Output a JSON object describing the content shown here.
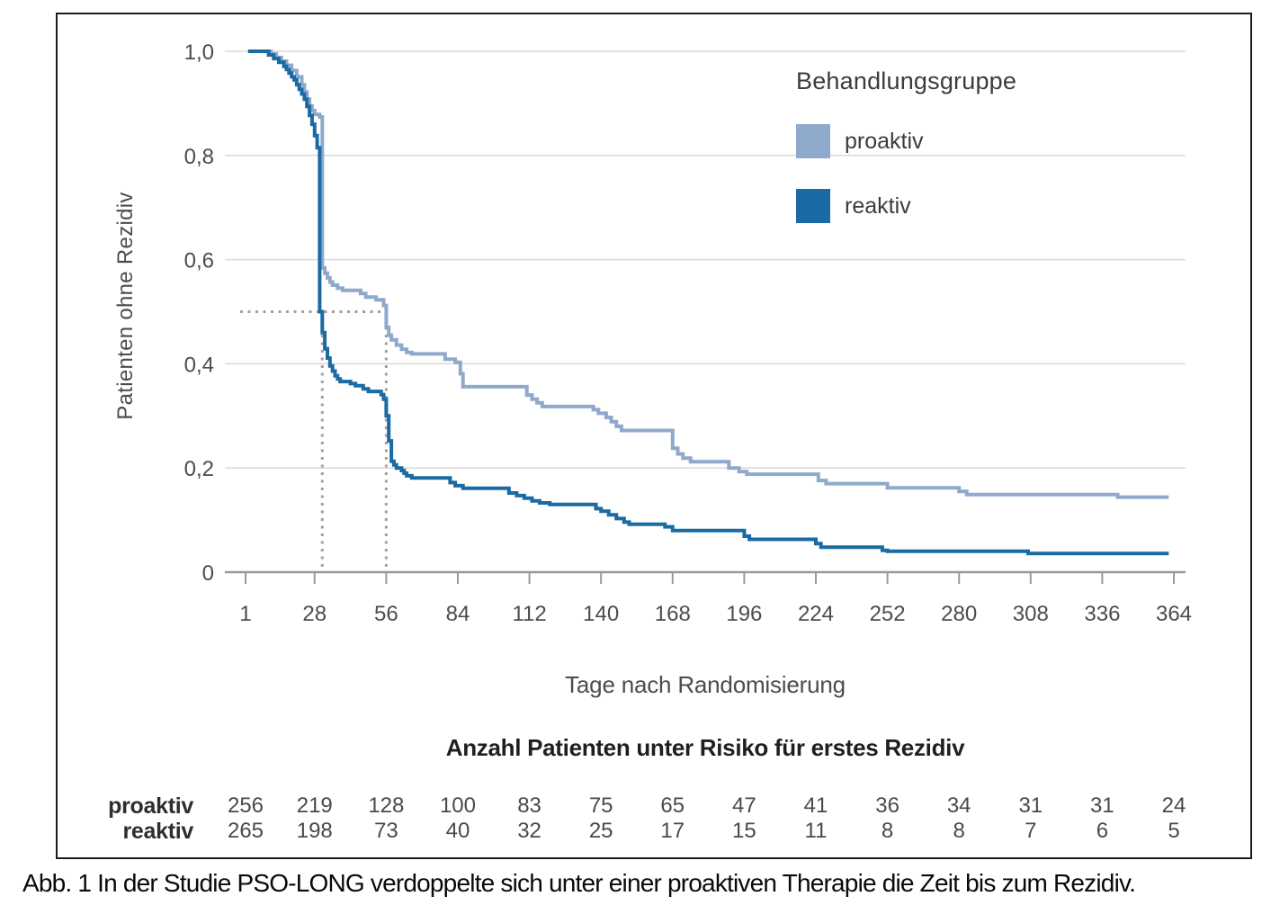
{
  "caption": "Abb. 1 In der Studie PSO-LONG verdoppelte sich unter einer proaktiven Therapie die Zeit bis zum Rezidiv.",
  "colors": {
    "proaktiv": "#8FA9CD",
    "reaktiv": "#1A6AA3",
    "gridline": "#dadada",
    "axis": "#9a9a9a",
    "dashed_guide": "#a0a0a0",
    "tick_text": "#4c4c4c"
  },
  "chart_data": {
    "type": "line",
    "variant": "kaplan-meier-step",
    "title": "",
    "xlabel": "Tage nach Randomisierung",
    "ylabel": "Patienten ohne Rezidiv",
    "xlim": [
      1,
      364
    ],
    "ylim": [
      0,
      1
    ],
    "grid": true,
    "legend_title": "Behandlungsgruppe",
    "legend_position": "top-right",
    "x_ticks": [
      1,
      28,
      56,
      84,
      112,
      140,
      168,
      196,
      224,
      252,
      280,
      308,
      336,
      364
    ],
    "y_ticks": {
      "values": [
        1.0,
        0.8,
        0.6,
        0.4,
        0.2,
        0
      ],
      "labels": [
        "1,0",
        "0,8",
        "0,6",
        "0,4",
        "0,2",
        "0"
      ]
    },
    "median_guides": {
      "survival_level": 0.5,
      "days": [
        31,
        56
      ]
    },
    "series": [
      {
        "name": "proaktiv",
        "color": "#8FA9CD",
        "points": [
          [
            2,
            1.0
          ],
          [
            9,
            1.0
          ],
          [
            11,
            0.995
          ],
          [
            13,
            0.988
          ],
          [
            15,
            0.981
          ],
          [
            17,
            0.973
          ],
          [
            19,
            0.963
          ],
          [
            21,
            0.951
          ],
          [
            23,
            0.936
          ],
          [
            24,
            0.922
          ],
          [
            25,
            0.908
          ],
          [
            26,
            0.895
          ],
          [
            27,
            0.886
          ],
          [
            28,
            0.879
          ],
          [
            30,
            0.874
          ],
          [
            31,
            0.584
          ],
          [
            32,
            0.574
          ],
          [
            33,
            0.565
          ],
          [
            34,
            0.557
          ],
          [
            35,
            0.551
          ],
          [
            37,
            0.545
          ],
          [
            39,
            0.541
          ],
          [
            46,
            0.535
          ],
          [
            48,
            0.528
          ],
          [
            52,
            0.523
          ],
          [
            55,
            0.512
          ],
          [
            56,
            0.47
          ],
          [
            57,
            0.455
          ],
          [
            58,
            0.446
          ],
          [
            60,
            0.436
          ],
          [
            62,
            0.428
          ],
          [
            64,
            0.422
          ],
          [
            66,
            0.419
          ],
          [
            79,
            0.409
          ],
          [
            83,
            0.403
          ],
          [
            85,
            0.381
          ],
          [
            86,
            0.356
          ],
          [
            111,
            0.34
          ],
          [
            113,
            0.332
          ],
          [
            115,
            0.325
          ],
          [
            117,
            0.318
          ],
          [
            137,
            0.312
          ],
          [
            139,
            0.305
          ],
          [
            142,
            0.297
          ],
          [
            144,
            0.289
          ],
          [
            146,
            0.28
          ],
          [
            148,
            0.272
          ],
          [
            168,
            0.238
          ],
          [
            170,
            0.227
          ],
          [
            172,
            0.219
          ],
          [
            175,
            0.212
          ],
          [
            190,
            0.2
          ],
          [
            194,
            0.193
          ],
          [
            197,
            0.188
          ],
          [
            225,
            0.176
          ],
          [
            228,
            0.17
          ],
          [
            252,
            0.162
          ],
          [
            280,
            0.155
          ],
          [
            283,
            0.149
          ],
          [
            342,
            0.144
          ],
          [
            362,
            0.144
          ]
        ]
      },
      {
        "name": "reaktiv",
        "color": "#1A6AA3",
        "points": [
          [
            2,
            1.0
          ],
          [
            8,
            1.0
          ],
          [
            10,
            0.993
          ],
          [
            12,
            0.986
          ],
          [
            14,
            0.979
          ],
          [
            16,
            0.971
          ],
          [
            17,
            0.965
          ],
          [
            18,
            0.958
          ],
          [
            19,
            0.951
          ],
          [
            20,
            0.945
          ],
          [
            21,
            0.936
          ],
          [
            22,
            0.927
          ],
          [
            23,
            0.918
          ],
          [
            24,
            0.908
          ],
          [
            25,
            0.894
          ],
          [
            26,
            0.877
          ],
          [
            27,
            0.86
          ],
          [
            28,
            0.838
          ],
          [
            29,
            0.815
          ],
          [
            30,
            0.5
          ],
          [
            31,
            0.46
          ],
          [
            32,
            0.429
          ],
          [
            33,
            0.411
          ],
          [
            34,
            0.396
          ],
          [
            35,
            0.386
          ],
          [
            36,
            0.377
          ],
          [
            37,
            0.371
          ],
          [
            38,
            0.366
          ],
          [
            42,
            0.362
          ],
          [
            44,
            0.358
          ],
          [
            47,
            0.352
          ],
          [
            49,
            0.347
          ],
          [
            54,
            0.341
          ],
          [
            55,
            0.332
          ],
          [
            56,
            0.3
          ],
          [
            57,
            0.252
          ],
          [
            58,
            0.213
          ],
          [
            59,
            0.206
          ],
          [
            60,
            0.2
          ],
          [
            62,
            0.195
          ],
          [
            63,
            0.19
          ],
          [
            64,
            0.185
          ],
          [
            66,
            0.181
          ],
          [
            81,
            0.172
          ],
          [
            83,
            0.166
          ],
          [
            86,
            0.161
          ],
          [
            104,
            0.152
          ],
          [
            107,
            0.147
          ],
          [
            110,
            0.142
          ],
          [
            113,
            0.137
          ],
          [
            116,
            0.133
          ],
          [
            120,
            0.13
          ],
          [
            138,
            0.122
          ],
          [
            140,
            0.117
          ],
          [
            143,
            0.11
          ],
          [
            146,
            0.103
          ],
          [
            149,
            0.096
          ],
          [
            151,
            0.092
          ],
          [
            165,
            0.087
          ],
          [
            168,
            0.08
          ],
          [
            196,
            0.069
          ],
          [
            198,
            0.063
          ],
          [
            224,
            0.055
          ],
          [
            226,
            0.048
          ],
          [
            250,
            0.042
          ],
          [
            252,
            0.04
          ],
          [
            307,
            0.036
          ],
          [
            362,
            0.036
          ]
        ]
      }
    ],
    "risk_table": {
      "title": "Anzahl Patienten unter Risiko für erstes Rezidiv",
      "rows": [
        {
          "label": "proaktiv",
          "values": [
            256,
            219,
            128,
            100,
            83,
            75,
            65,
            47,
            41,
            36,
            34,
            31,
            31,
            24
          ]
        },
        {
          "label": "reaktiv",
          "values": [
            265,
            198,
            73,
            40,
            32,
            25,
            17,
            15,
            11,
            8,
            8,
            7,
            6,
            5
          ]
        }
      ]
    }
  }
}
